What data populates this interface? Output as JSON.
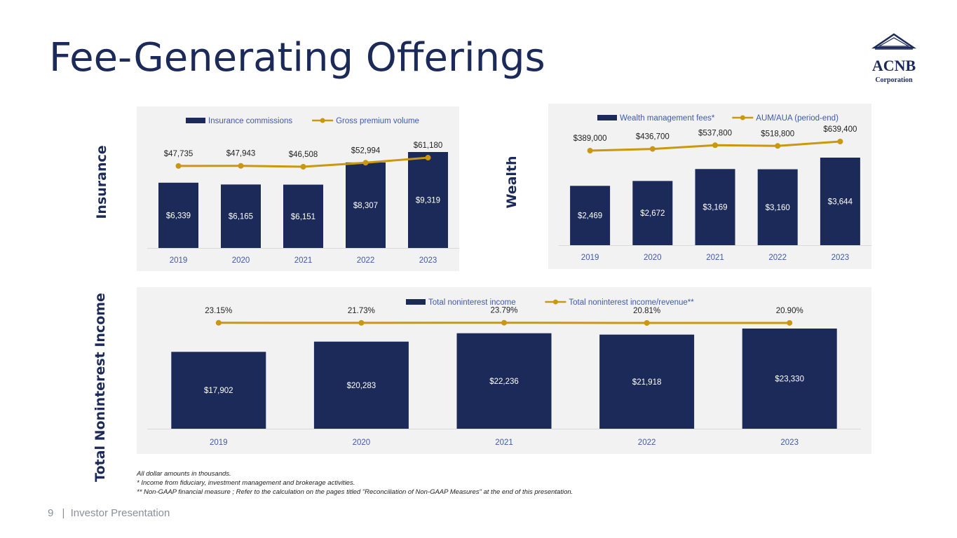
{
  "page": {
    "title": "Fee-Generating Offerings",
    "page_number": "9",
    "footer_separator": "|",
    "footer_text": "Investor Presentation",
    "section_labels": {
      "insurance": "Insurance",
      "wealth": "Wealth",
      "total": "Total Noninterest Income"
    },
    "notes": [
      "All dollar amounts in thousands.",
      "* Income from fiduciary, investment management and brokerage activities.",
      "** Non-GAAP financial measure ; Refer to the calculation on the pages titled \"Reconciliation of Non-GAAP Measures\" at the end of this presentation."
    ],
    "logo": {
      "line1": "ACNB",
      "line2": "Corporation"
    }
  },
  "colors": {
    "bar": "#1b2a59",
    "line": "#c9980f",
    "panel_bg": "#f2f2f2",
    "axis_text": "#3f5aa8",
    "title": "#1b2a59",
    "footer": "#8a8f99"
  },
  "chart_data": [
    {
      "id": "insurance",
      "type": "bar",
      "categories": [
        "2019",
        "2020",
        "2021",
        "2022",
        "2023"
      ],
      "series": [
        {
          "name": "Insurance commissions",
          "kind": "bar",
          "values": [
            6339,
            6165,
            6151,
            8307,
            9319
          ],
          "labels": [
            "$6,339",
            "$6,165",
            "$6,151",
            "$8,307",
            "$9,319"
          ]
        },
        {
          "name": "Gross premium volume",
          "kind": "line",
          "values": [
            47735,
            47943,
            46508,
            52994,
            61180
          ],
          "labels": [
            "$47,735",
            "$47,943",
            "$46,508",
            "$52,994",
            "$61,180"
          ]
        }
      ],
      "ylim_bar": [
        0,
        9319
      ],
      "ylim_line": [
        -85000,
        110000
      ],
      "legend": "top",
      "grid": false
    },
    {
      "id": "wealth",
      "type": "bar",
      "categories": [
        "2019",
        "2020",
        "2021",
        "2022",
        "2023"
      ],
      "series": [
        {
          "name": "Wealth management fees*",
          "kind": "bar",
          "values": [
            2469,
            2672,
            3169,
            3160,
            3644
          ],
          "labels": [
            "$2,469",
            "$2,672",
            "$3,169",
            "$3,160",
            "$3,644"
          ]
        },
        {
          "name": "AUM/AUA (period-end)",
          "kind": "line",
          "values": [
            389000,
            436700,
            537800,
            518800,
            639400
          ],
          "labels": [
            "$389,000",
            "$436,700",
            "$537,800",
            "$518,800",
            "$639,400"
          ]
        }
      ],
      "ylim_bar": [
        0,
        3644
      ],
      "ylim_line": [
        -2200000,
        1100000
      ],
      "legend": "top",
      "grid": false
    },
    {
      "id": "total",
      "type": "bar",
      "categories": [
        "2019",
        "2020",
        "2021",
        "2022",
        "2023"
      ],
      "series": [
        {
          "name": "Total noninterest income",
          "kind": "bar",
          "values": [
            17902,
            20283,
            22236,
            21918,
            23330
          ],
          "labels": [
            "$17,902",
            "$20,283",
            "$22,236",
            "$21,918",
            "$23,330"
          ]
        },
        {
          "name": "Total noninterest income/revenue**",
          "kind": "line",
          "values": [
            23.15,
            21.73,
            23.79,
            20.81,
            20.9
          ],
          "labels": [
            "23.15%",
            "21.73%",
            "23.79%",
            "20.81%",
            "20.90%"
          ]
        }
      ],
      "ylim_bar": [
        0,
        23330
      ],
      "ylim_line": [
        -1700,
        260
      ],
      "legend": "top",
      "grid": false
    }
  ]
}
